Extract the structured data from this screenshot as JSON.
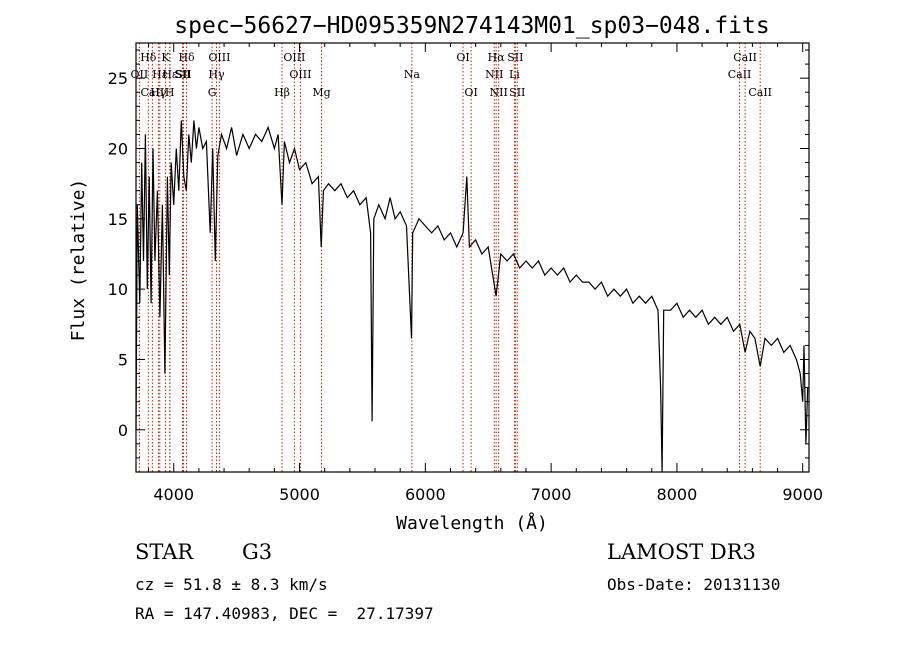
{
  "chart_data": {
    "type": "line",
    "title": "spec−56627−HD095359N274143M01_sp03−048.fits",
    "xlabel": "Wavelength (Å)",
    "ylabel": "Flux (relative)",
    "xlim": [
      3700,
      9050
    ],
    "ylim": [
      -3,
      27.5
    ],
    "xticks": [
      4000,
      5000,
      6000,
      7000,
      8000,
      9000
    ],
    "yticks": [
      0,
      5,
      10,
      15,
      20,
      25
    ],
    "series": [
      {
        "name": "flux",
        "points": [
          [
            3700,
            0
          ],
          [
            3710,
            16
          ],
          [
            3730,
            9
          ],
          [
            3745,
            19
          ],
          [
            3760,
            12
          ],
          [
            3775,
            21
          ],
          [
            3790,
            10
          ],
          [
            3805,
            18
          ],
          [
            3820,
            9
          ],
          [
            3835,
            20
          ],
          [
            3850,
            12
          ],
          [
            3870,
            17
          ],
          [
            3890,
            8
          ],
          [
            3910,
            16
          ],
          [
            3930,
            4
          ],
          [
            3950,
            18
          ],
          [
            3965,
            11
          ],
          [
            3980,
            19
          ],
          [
            4000,
            16
          ],
          [
            4020,
            20
          ],
          [
            4040,
            17
          ],
          [
            4060,
            22
          ],
          [
            4080,
            18
          ],
          [
            4100,
            17
          ],
          [
            4120,
            21
          ],
          [
            4140,
            19
          ],
          [
            4160,
            22
          ],
          [
            4180,
            20
          ],
          [
            4200,
            21.5
          ],
          [
            4230,
            20
          ],
          [
            4260,
            20.5
          ],
          [
            4290,
            14
          ],
          [
            4310,
            20
          ],
          [
            4330,
            12
          ],
          [
            4350,
            19.5
          ],
          [
            4380,
            21
          ],
          [
            4420,
            20
          ],
          [
            4460,
            21.5
          ],
          [
            4500,
            19.5
          ],
          [
            4550,
            21
          ],
          [
            4600,
            20
          ],
          [
            4650,
            21
          ],
          [
            4700,
            20.5
          ],
          [
            4750,
            21.5
          ],
          [
            4800,
            20
          ],
          [
            4830,
            21
          ],
          [
            4861,
            16
          ],
          [
            4880,
            20.5
          ],
          [
            4920,
            19
          ],
          [
            4960,
            20
          ],
          [
            5000,
            18.5
          ],
          [
            5050,
            19
          ],
          [
            5100,
            17.5
          ],
          [
            5150,
            18
          ],
          [
            5172,
            13
          ],
          [
            5190,
            17
          ],
          [
            5230,
            17.5
          ],
          [
            5280,
            17
          ],
          [
            5330,
            17.5
          ],
          [
            5380,
            16.5
          ],
          [
            5430,
            17
          ],
          [
            5480,
            16
          ],
          [
            5530,
            16.5
          ],
          [
            5565,
            14
          ],
          [
            5577,
            0.6
          ],
          [
            5590,
            15
          ],
          [
            5630,
            16
          ],
          [
            5680,
            15
          ],
          [
            5720,
            16.5
          ],
          [
            5760,
            15
          ],
          [
            5800,
            15.5
          ],
          [
            5850,
            14.5
          ],
          [
            5890,
            6.5
          ],
          [
            5900,
            14
          ],
          [
            5950,
            15
          ],
          [
            6000,
            14.5
          ],
          [
            6050,
            14
          ],
          [
            6100,
            14.5
          ],
          [
            6150,
            13.5
          ],
          [
            6200,
            14
          ],
          [
            6250,
            13
          ],
          [
            6300,
            14
          ],
          [
            6330,
            18
          ],
          [
            6350,
            13
          ],
          [
            6400,
            13.5
          ],
          [
            6450,
            12.5
          ],
          [
            6500,
            13
          ],
          [
            6563,
            9.5
          ],
          [
            6600,
            12.5
          ],
          [
            6650,
            12
          ],
          [
            6700,
            12.5
          ],
          [
            6750,
            11.5
          ],
          [
            6800,
            12
          ],
          [
            6850,
            11.5
          ],
          [
            6900,
            12
          ],
          [
            6950,
            11
          ],
          [
            7000,
            11.5
          ],
          [
            7050,
            11
          ],
          [
            7100,
            11.5
          ],
          [
            7150,
            10.5
          ],
          [
            7200,
            11
          ],
          [
            7250,
            10.5
          ],
          [
            7300,
            10.5
          ],
          [
            7350,
            10
          ],
          [
            7400,
            10.5
          ],
          [
            7450,
            9.5
          ],
          [
            7500,
            10
          ],
          [
            7550,
            9.5
          ],
          [
            7600,
            10
          ],
          [
            7650,
            9
          ],
          [
            7700,
            9.5
          ],
          [
            7750,
            9
          ],
          [
            7800,
            9.5
          ],
          [
            7850,
            8.5
          ],
          [
            7870,
            3
          ],
          [
            7882,
            -3
          ],
          [
            7895,
            8.5
          ],
          [
            7950,
            8.5
          ],
          [
            8000,
            9
          ],
          [
            8050,
            8
          ],
          [
            8100,
            8.5
          ],
          [
            8150,
            8
          ],
          [
            8200,
            8.5
          ],
          [
            8250,
            7.5
          ],
          [
            8300,
            8
          ],
          [
            8350,
            7.5
          ],
          [
            8400,
            8
          ],
          [
            8450,
            7
          ],
          [
            8500,
            7.5
          ],
          [
            8542,
            5.5
          ],
          [
            8580,
            7
          ],
          [
            8620,
            6.5
          ],
          [
            8662,
            4.5
          ],
          [
            8700,
            6.5
          ],
          [
            8750,
            6
          ],
          [
            8800,
            6.5
          ],
          [
            8850,
            5.5
          ],
          [
            8900,
            6
          ],
          [
            8950,
            5
          ],
          [
            8980,
            4
          ],
          [
            9000,
            2
          ],
          [
            9010,
            6
          ],
          [
            9025,
            -1
          ],
          [
            9040,
            3
          ]
        ]
      }
    ],
    "lines": [
      {
        "label": "Hδ",
        "x": 3798,
        "row": 0
      },
      {
        "label": "OII",
        "x": 3727,
        "row": 1
      },
      {
        "label": "CaII",
        "x": 3830,
        "row": 2
      },
      {
        "label": "Hε",
        "x": 3889,
        "row": 1
      },
      {
        "label": "K",
        "x": 3934,
        "row": 0
      },
      {
        "label": "Hγ",
        "x": 3878,
        "row": 2
      },
      {
        "label": "Hε",
        "x": 3970,
        "row": 1
      },
      {
        "label": "H",
        "x": 3968,
        "row": 2
      },
      {
        "label": "SII",
        "x": 4070,
        "row": 1
      },
      {
        "label": "Hδ",
        "x": 4102,
        "row": 0
      },
      {
        "label": "SII",
        "x": 4078,
        "row": 1
      },
      {
        "label": "OIII",
        "x": 4363,
        "row": 0
      },
      {
        "label": "Hγ",
        "x": 4340,
        "row": 1
      },
      {
        "label": "G",
        "x": 4305,
        "row": 2
      },
      {
        "label": "Hβ",
        "x": 4861,
        "row": 2
      },
      {
        "label": "OIII",
        "x": 4959,
        "row": 0
      },
      {
        "label": "OIII",
        "x": 5007,
        "row": 1
      },
      {
        "label": "Mg",
        "x": 5175,
        "row": 2
      },
      {
        "label": "Na",
        "x": 5893,
        "row": 1
      },
      {
        "label": "OI",
        "x": 6300,
        "row": 0
      },
      {
        "label": "OI",
        "x": 6364,
        "row": 2
      },
      {
        "label": "Hα",
        "x": 6563,
        "row": 0
      },
      {
        "label": "NII",
        "x": 6548,
        "row": 1
      },
      {
        "label": "NII",
        "x": 6583,
        "row": 2
      },
      {
        "label": "SII",
        "x": 6716,
        "row": 0
      },
      {
        "label": "Li",
        "x": 6708,
        "row": 1
      },
      {
        "label": "SII",
        "x": 6731,
        "row": 2
      },
      {
        "label": "CaII",
        "x": 8542,
        "row": 0
      },
      {
        "label": "CaII",
        "x": 8498,
        "row": 1
      },
      {
        "label": "CaII",
        "x": 8662,
        "row": 2
      }
    ]
  },
  "info": {
    "object_class": "STAR",
    "subclass": "G3",
    "survey": "LAMOST DR3",
    "redshift": "cz = 51.8 ± 8.3 km/s",
    "obs_date": "Obs-Date: 20131130",
    "coords": "RA = 147.40983, DEC =  27.17397"
  },
  "colors": {
    "line_marker": "#cc2200",
    "spectrum": "#000000",
    "axis": "#000000"
  }
}
